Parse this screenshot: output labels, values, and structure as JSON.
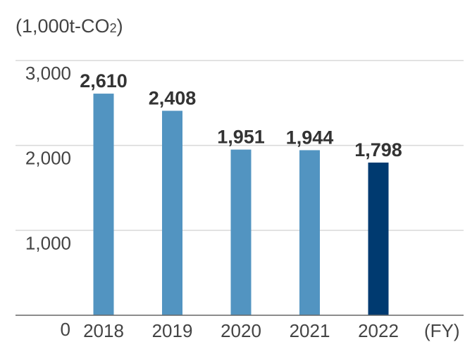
{
  "chart_data": {
    "type": "bar",
    "unit_label": "(1,000t-CO",
    "unit_subscript": "2",
    "unit_close": ")",
    "x_unit_label": "(FY)",
    "categories": [
      "2018",
      "2019",
      "2020",
      "2021",
      "2022"
    ],
    "values": [
      2610,
      2408,
      1951,
      1944,
      1798
    ],
    "value_labels": [
      "2,610",
      "2,408",
      "1,951",
      "1,944",
      "1,798"
    ],
    "ylim": [
      0,
      3000
    ],
    "yticks": [
      0,
      1000,
      2000,
      3000
    ],
    "ytick_labels": [
      "0",
      "1,000",
      "2,000",
      "3,000"
    ],
    "grid": true,
    "colors": {
      "default_bar": "#5294c1",
      "highlight_bar": "#003a70"
    },
    "highlight_index": 4
  }
}
